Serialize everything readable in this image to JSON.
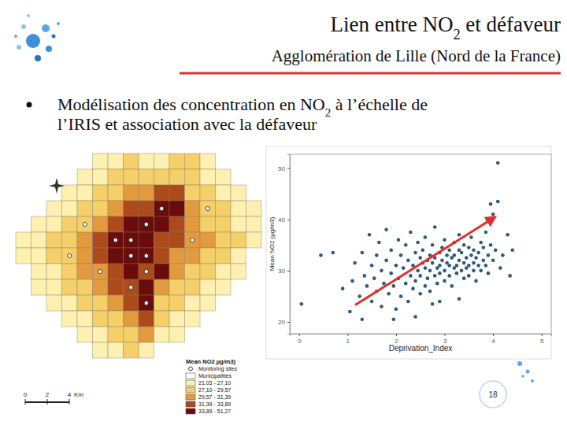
{
  "slide": {
    "title": [
      {
        "text": "Lien entre NO"
      },
      {
        "text": "2",
        "sub": true
      },
      {
        "text": " et défaveur"
      }
    ],
    "subtitle": "Agglomération de Lille (Nord de la France)",
    "bullet": [
      [
        {
          "text": "Modélisation des concentration en NO"
        },
        {
          "text": "2",
          "sub": true
        },
        {
          "text": " à l’échelle de"
        }
      ],
      [
        {
          "text": "l’IRIS et association avec la défaveur"
        }
      ]
    ],
    "page_number": 18
  },
  "map": {
    "legend_title": "Mean NO2 µg/m3)",
    "sites_label": "Monitoring sites",
    "municipalities_label": "Municipalities",
    "classes": [
      "21,03 - 27,10",
      "27,10 - 29,57",
      "29,57 - 31,39",
      "31,39 - 33,89",
      "33,89 - 51,27"
    ],
    "colors": [
      "#fdf0b0",
      "#f5cf6a",
      "#e39a3e",
      "#ad4a1c",
      "#6a0c0c"
    ],
    "cells": [
      [
        null,
        null,
        null,
        null,
        null,
        0,
        0,
        1,
        0,
        0,
        1,
        1,
        0,
        null,
        null,
        null
      ],
      [
        null,
        null,
        null,
        null,
        0,
        0,
        1,
        1,
        1,
        1,
        1,
        1,
        0,
        0,
        null,
        null
      ],
      [
        null,
        null,
        null,
        0,
        0,
        1,
        1,
        2,
        2,
        3,
        3,
        1,
        1,
        0,
        0,
        null
      ],
      [
        null,
        null,
        0,
        0,
        1,
        1,
        2,
        3,
        3,
        4,
        4,
        2,
        1,
        1,
        0,
        0
      ],
      [
        null,
        0,
        0,
        1,
        1,
        2,
        3,
        4,
        4,
        4,
        3,
        2,
        1,
        1,
        0,
        0
      ],
      [
        0,
        0,
        1,
        1,
        2,
        3,
        4,
        4,
        4,
        3,
        3,
        2,
        2,
        1,
        1,
        0
      ],
      [
        0,
        0,
        1,
        1,
        2,
        3,
        4,
        4,
        4,
        3,
        2,
        2,
        1,
        1,
        0,
        null
      ],
      [
        null,
        0,
        0,
        1,
        2,
        2,
        3,
        4,
        3,
        4,
        2,
        1,
        1,
        0,
        0,
        null
      ],
      [
        null,
        0,
        0,
        1,
        1,
        2,
        3,
        3,
        4,
        2,
        1,
        1,
        0,
        0,
        null,
        null
      ],
      [
        null,
        null,
        0,
        0,
        1,
        1,
        2,
        3,
        4,
        1,
        1,
        0,
        0,
        null,
        null,
        null
      ],
      [
        null,
        null,
        null,
        0,
        0,
        1,
        1,
        2,
        3,
        1,
        0,
        0,
        null,
        null,
        null,
        null
      ],
      [
        null,
        null,
        null,
        null,
        0,
        0,
        1,
        1,
        2,
        0,
        0,
        null,
        null,
        null,
        null,
        null
      ],
      [
        null,
        null,
        null,
        null,
        null,
        0,
        0,
        1,
        0,
        null,
        null,
        null,
        null,
        null,
        null,
        null
      ]
    ],
    "sites": [
      [
        3,
        9
      ],
      [
        4,
        8
      ],
      [
        5,
        6
      ],
      [
        5,
        7
      ],
      [
        6,
        7
      ],
      [
        6,
        8
      ],
      [
        7,
        5
      ],
      [
        7,
        8
      ],
      [
        8,
        7
      ],
      [
        3,
        12
      ],
      [
        5,
        11
      ],
      [
        4,
        4
      ],
      [
        9,
        8
      ],
      [
        6,
        3
      ]
    ],
    "scale_bar": {
      "ticks": [
        0,
        2,
        4
      ],
      "unit": "Km"
    }
  },
  "chart_data": {
    "type": "scatter",
    "x_label": "Deprivation_Index",
    "y_label": "Mean NO2 (µg/m3)",
    "x": [
      0.05,
      0.45,
      0.7,
      0.9,
      1.05,
      1.15,
      1.1,
      1.25,
      1.3,
      1.35,
      1.4,
      1.45,
      1.5,
      1.5,
      1.55,
      1.6,
      1.6,
      1.65,
      1.7,
      1.7,
      1.75,
      1.8,
      1.8,
      1.85,
      1.9,
      1.9,
      1.95,
      2.0,
      2.0,
      2.05,
      2.05,
      2.1,
      2.1,
      2.15,
      2.2,
      2.2,
      2.25,
      2.25,
      2.3,
      2.3,
      2.35,
      2.35,
      2.4,
      2.4,
      2.45,
      2.45,
      2.5,
      2.5,
      2.5,
      2.55,
      2.55,
      2.6,
      2.6,
      2.6,
      2.65,
      2.65,
      2.7,
      2.7,
      2.7,
      2.75,
      2.75,
      2.8,
      2.8,
      2.8,
      2.85,
      2.85,
      2.9,
      2.9,
      2.9,
      2.95,
      2.95,
      3.0,
      3.0,
      3.0,
      3.05,
      3.05,
      3.1,
      3.1,
      3.1,
      3.15,
      3.15,
      3.2,
      3.2,
      3.2,
      3.25,
      3.25,
      3.3,
      3.3,
      3.3,
      3.35,
      3.35,
      3.4,
      3.4,
      3.4,
      3.45,
      3.45,
      3.5,
      3.5,
      3.5,
      3.55,
      3.55,
      3.6,
      3.6,
      3.6,
      3.65,
      3.65,
      3.7,
      3.7,
      3.75,
      3.75,
      3.8,
      3.8,
      3.85,
      3.85,
      3.9,
      3.9,
      3.95,
      3.95,
      4.0,
      4.0,
      4.05,
      4.1,
      4.1,
      4.15,
      4.2,
      4.3,
      4.35,
      4.4,
      2.4,
      2.9,
      3.3,
      1.3,
      1.95,
      2.75
    ],
    "values": [
      23.5,
      33,
      33.5,
      26.5,
      22,
      31.5,
      28,
      25,
      33.5,
      29,
      27,
      37,
      24,
      31,
      28.5,
      33,
      26,
      35.5,
      30,
      23,
      27.5,
      32,
      38,
      25.5,
      29.5,
      34,
      27,
      31,
      22.5,
      36,
      28.5,
      33,
      25,
      30.5,
      27.5,
      35,
      32,
      24,
      29,
      37.5,
      31,
      26.5,
      33.5,
      28,
      30,
      35.5,
      32.5,
      25.5,
      29,
      31.5,
      34,
      27,
      30.5,
      36.5,
      32,
      28.5,
      33,
      30,
      26,
      31.5,
      35,
      29,
      32.5,
      38.5,
      30.5,
      27.5,
      33.5,
      31,
      29.5,
      34.5,
      32,
      30,
      28,
      36,
      31.5,
      33,
      29,
      34,
      31,
      32.5,
      27,
      30.5,
      35.5,
      33,
      31,
      29.5,
      34,
      32,
      37,
      30,
      33.5,
      31.5,
      28.5,
      35,
      32.5,
      30.5,
      34.5,
      31,
      29,
      33,
      36.5,
      31.5,
      30,
      34,
      32.5,
      28,
      33.5,
      31,
      35.5,
      30,
      32,
      34.5,
      31,
      37.5,
      33,
      29.5,
      35,
      43,
      32,
      41,
      34,
      43.5,
      51,
      30.5,
      33,
      37,
      29,
      34,
      21,
      24,
      24.5,
      20.5,
      20.5,
      23.5
    ],
    "xlim": [
      -0.19,
      5.2
    ],
    "ylim": [
      17.7,
      52.7
    ],
    "xticks": [
      0,
      1,
      2,
      3,
      4,
      5
    ],
    "yticks": [
      20,
      30,
      40,
      50
    ],
    "color": "#2b5b7e",
    "marker": "circle",
    "grid": false
  }
}
